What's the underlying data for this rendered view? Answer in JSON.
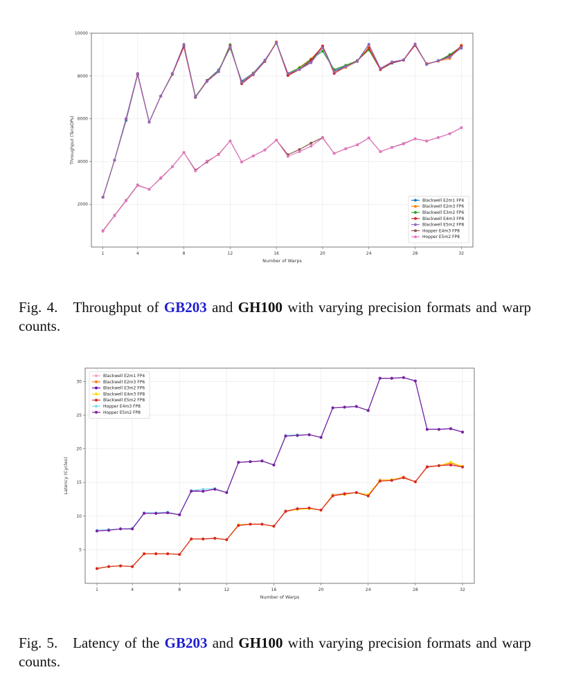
{
  "fig4": {
    "caption_num": "Fig. 4.",
    "caption_pre": "Throughput of",
    "caption_chip1": "GB203",
    "caption_mid": "and",
    "caption_chip2": "GH100",
    "caption_post": "with varying precision formats and warp counts."
  },
  "fig5": {
    "caption_num": "Fig. 5.",
    "caption_pre": "Latency of the",
    "caption_chip1": "GB203",
    "caption_mid": "and",
    "caption_chip2": "GH100",
    "caption_post": "with varying precision formats and warp counts."
  },
  "chart_data": [
    {
      "type": "line",
      "title": "",
      "xlabel": "Number of Warps",
      "ylabel": "Throughput (TeraOPs)",
      "xlim": [
        0,
        33
      ],
      "ylim": [
        0,
        10000
      ],
      "xticks": [
        1,
        4,
        8,
        12,
        16,
        20,
        24,
        28,
        32
      ],
      "yticks": [
        2000,
        4000,
        6000,
        8000,
        10000
      ],
      "grid": true,
      "legend_position": "bottom-right",
      "x": [
        1,
        2,
        3,
        4,
        5,
        6,
        7,
        8,
        9,
        10,
        11,
        12,
        13,
        14,
        15,
        16,
        17,
        18,
        19,
        20,
        21,
        22,
        23,
        24,
        25,
        26,
        27,
        28,
        29,
        30,
        31,
        32
      ],
      "series": [
        {
          "name": "Blackwell E2m1 FP4",
          "color": "#1f77b4",
          "values": [
            2330,
            4060,
            5920,
            8060,
            5840,
            7060,
            8080,
            9400,
            7000,
            7800,
            8280,
            9300,
            7760,
            8140,
            8740,
            9540,
            8060,
            8320,
            8660,
            9400,
            8240,
            8460,
            8700,
            9480,
            8300,
            8600,
            8740,
            9480,
            8540,
            8720,
            8960,
            9300
          ]
        },
        {
          "name": "Blackwell E2m3 FP6",
          "color": "#ff7f0e",
          "values": [
            2330,
            4060,
            5980,
            8080,
            5840,
            7060,
            8080,
            9400,
            7040,
            7780,
            8240,
            9340,
            7700,
            8120,
            8700,
            9600,
            8060,
            8400,
            8800,
            9360,
            8200,
            8400,
            8680,
            9350,
            8300,
            8640,
            8760,
            9450,
            8580,
            8700,
            8820,
            9440
          ]
        },
        {
          "name": "Blackwell E3m2 FP6",
          "color": "#2ca02c",
          "values": [
            2330,
            4060,
            6000,
            8100,
            5840,
            7060,
            8080,
            9420,
            7050,
            7760,
            8220,
            9460,
            7640,
            8100,
            8680,
            9560,
            8120,
            8380,
            8780,
            9160,
            8300,
            8500,
            8720,
            9220,
            8300,
            8620,
            8760,
            9440,
            8560,
            8700,
            9000,
            9380
          ]
        },
        {
          "name": "Blackwell E4m3 FP8",
          "color": "#d62728",
          "values": [
            2330,
            4060,
            6000,
            8080,
            5840,
            7060,
            8100,
            9360,
            7000,
            7760,
            8200,
            9400,
            7640,
            8060,
            8680,
            9560,
            8020,
            8300,
            8740,
            9400,
            8120,
            8440,
            8700,
            9300,
            8300,
            8620,
            8740,
            9440,
            8560,
            8700,
            8920,
            9400
          ]
        },
        {
          "name": "Blackwell E5m2 FP8",
          "color": "#9467bd",
          "values": [
            2330,
            4060,
            6000,
            8120,
            5840,
            7060,
            8120,
            9480,
            7020,
            7740,
            8200,
            9360,
            7700,
            8080,
            8720,
            9560,
            8120,
            8300,
            8620,
            9320,
            8200,
            8440,
            8680,
            9480,
            8360,
            8660,
            8760,
            9500,
            8540,
            8720,
            8880,
            9320
          ]
        },
        {
          "name": "Hopper E4m3 FP8",
          "color": "#8c564b",
          "values": [
            760,
            1480,
            2180,
            2900,
            2700,
            3220,
            3760,
            4420,
            3600,
            3980,
            4340,
            4960,
            3980,
            4260,
            4540,
            5000,
            4320,
            4560,
            4860,
            5120,
            4380,
            4600,
            4780,
            5100,
            4460,
            4660,
            4840,
            5060,
            4960,
            5120,
            5300,
            5580
          ]
        },
        {
          "name": "Hopper E5m2 FP8",
          "color": "#e377c2",
          "values": [
            740,
            1460,
            2160,
            2880,
            2700,
            3240,
            3760,
            4420,
            3560,
            4020,
            4320,
            4960,
            3980,
            4260,
            4540,
            5000,
            4240,
            4460,
            4720,
            5100,
            4380,
            4600,
            4780,
            5100,
            4460,
            4660,
            4820,
            5060,
            4960,
            5120,
            5300,
            5580
          ]
        }
      ]
    },
    {
      "type": "line",
      "title": "",
      "xlabel": "Number of Warps",
      "ylabel": "Latency (Cycles)",
      "xlim": [
        0,
        33
      ],
      "ylim": [
        0,
        32
      ],
      "xticks": [
        1,
        4,
        8,
        12,
        16,
        20,
        24,
        28,
        32
      ],
      "yticks": [
        5,
        10,
        15,
        20,
        25,
        30
      ],
      "grid": true,
      "legend_position": "top-left",
      "x": [
        1,
        2,
        3,
        4,
        5,
        6,
        7,
        8,
        9,
        10,
        11,
        12,
        13,
        14,
        15,
        16,
        17,
        18,
        19,
        20,
        21,
        22,
        23,
        24,
        25,
        26,
        27,
        28,
        29,
        30,
        31,
        32
      ],
      "series": [
        {
          "name": "Blackwell E2m1 FP4",
          "color": "#f4a6c6",
          "values": [
            2.2,
            2.5,
            2.6,
            2.5,
            4.4,
            4.4,
            4.4,
            4.3,
            6.6,
            6.6,
            6.7,
            6.5,
            8.7,
            8.8,
            8.8,
            8.5,
            10.8,
            11.0,
            11.2,
            10.9,
            13.2,
            13.4,
            13.5,
            13.0,
            15.4,
            15.4,
            15.8,
            15.1,
            17.4,
            17.5,
            17.8,
            17.4
          ]
        },
        {
          "name": "Blackwell E2m3 FP6",
          "color": "#ff7f0e",
          "values": [
            2.2,
            2.5,
            2.6,
            2.5,
            4.4,
            4.4,
            4.4,
            4.3,
            6.6,
            6.6,
            6.7,
            6.5,
            8.7,
            8.8,
            8.8,
            8.5,
            10.7,
            11.0,
            11.2,
            10.9,
            13.1,
            13.3,
            13.5,
            13.0,
            15.3,
            15.4,
            15.8,
            15.1,
            17.3,
            17.5,
            17.9,
            17.4
          ]
        },
        {
          "name": "Blackwell E3m2 FP6",
          "color": "#6a0dad",
          "values": [
            7.8,
            7.9,
            8.1,
            8.1,
            10.5,
            10.4,
            10.5,
            10.2,
            13.8,
            13.7,
            14.0,
            13.5,
            18.0,
            18.1,
            18.2,
            17.6,
            21.9,
            22.0,
            22.1,
            21.7,
            26.1,
            26.2,
            26.3,
            25.7,
            30.5,
            30.5,
            30.6,
            30.1,
            22.9,
            22.9,
            23.0,
            22.5
          ]
        },
        {
          "name": "Blackwell E4m3 FP8",
          "color": "#ffd700",
          "values": [
            2.2,
            2.5,
            2.6,
            2.5,
            4.4,
            4.4,
            4.4,
            4.3,
            6.6,
            6.6,
            6.7,
            6.5,
            8.7,
            8.8,
            8.8,
            8.5,
            10.7,
            11.0,
            11.1,
            10.9,
            13.1,
            13.2,
            13.5,
            13.2,
            15.3,
            15.4,
            15.7,
            15.1,
            17.3,
            17.5,
            18.0,
            17.4
          ]
        },
        {
          "name": "Blackwell E5m2 FP8",
          "color": "#d62728",
          "values": [
            2.2,
            2.5,
            2.6,
            2.5,
            4.4,
            4.4,
            4.4,
            4.3,
            6.6,
            6.6,
            6.7,
            6.5,
            8.6,
            8.8,
            8.8,
            8.5,
            10.7,
            11.1,
            11.2,
            10.9,
            13.0,
            13.3,
            13.5,
            13.0,
            15.2,
            15.3,
            15.7,
            15.1,
            17.3,
            17.5,
            17.6,
            17.3
          ]
        },
        {
          "name": "Hopper E4m3 FP8",
          "color": "#7fd9f0",
          "values": [
            7.9,
            8.0,
            8.1,
            8.2,
            10.5,
            10.5,
            10.6,
            10.2,
            13.8,
            14.0,
            14.1,
            13.5,
            18.0,
            18.1,
            18.2,
            17.6,
            22.0,
            22.1,
            22.1,
            21.7,
            26.1,
            26.2,
            26.3,
            25.7,
            30.5,
            30.5,
            30.6,
            30.1,
            22.9,
            22.9,
            23.0,
            22.5
          ]
        },
        {
          "name": "Hopper E5m2 FP8",
          "color": "#7b1fa2",
          "values": [
            7.8,
            7.9,
            8.1,
            8.1,
            10.4,
            10.4,
            10.5,
            10.2,
            13.7,
            13.7,
            14.0,
            13.5,
            18.0,
            18.1,
            18.2,
            17.6,
            21.9,
            22.0,
            22.1,
            21.7,
            26.1,
            26.2,
            26.3,
            25.7,
            30.5,
            30.5,
            30.6,
            30.1,
            22.9,
            22.9,
            23.0,
            22.5
          ]
        }
      ]
    }
  ]
}
